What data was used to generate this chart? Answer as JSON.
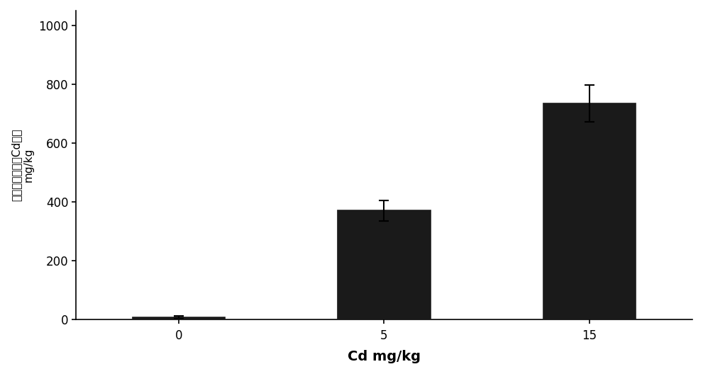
{
  "categories": [
    "0",
    "5",
    "15"
  ],
  "x_positions": [
    0,
    1,
    2
  ],
  "values": [
    8,
    370,
    735
  ],
  "errors": [
    4,
    35,
    62
  ],
  "bar_color": "#1a1a1a",
  "bar_width": 0.45,
  "xlabel": "Cd mg/kg",
  "ylabel_line1": "伴矿景天地上部Cd浓度",
  "ylabel_line2": "mg/kg",
  "ylim": [
    0,
    1050
  ],
  "yticks": [
    0,
    200,
    400,
    600,
    800,
    1000
  ],
  "xlabel_fontsize": 14,
  "ylabel_fontsize": 11,
  "tick_fontsize": 12,
  "background_color": "#ffffff",
  "edge_color": "#1a1a1a"
}
